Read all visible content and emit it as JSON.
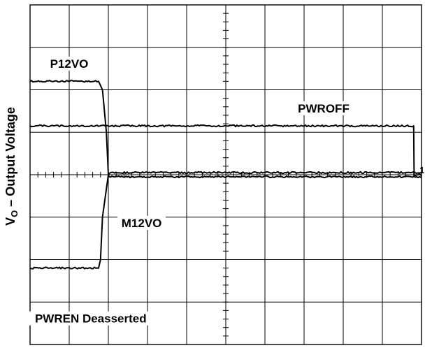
{
  "chart_data": {
    "type": "line",
    "title": "",
    "ylabel_main": "V",
    "ylabel_sub": "O",
    "ylabel_rest": " – Output Voltage",
    "xlabel": "",
    "grid": true,
    "divisions": {
      "x": 10,
      "y": 8
    },
    "xlim": [
      0,
      10
    ],
    "ylim": [
      -4,
      4
    ],
    "reference_marker": "1",
    "series": [
      {
        "name": "P12VO",
        "x": [
          0,
          1.75,
          1.85,
          1.95,
          2.0,
          2.02,
          10
        ],
        "y": [
          2.2,
          2.2,
          2.0,
          1.0,
          0.0,
          -0.05,
          -0.05
        ]
      },
      {
        "name": "PWROFF",
        "x": [
          0,
          9.8,
          9.81,
          10
        ],
        "y": [
          1.15,
          1.15,
          0.0,
          0.0
        ]
      },
      {
        "name": "M12VO",
        "x": [
          0,
          1.75,
          1.8,
          1.85,
          2.0,
          2.05,
          10
        ],
        "y": [
          -2.2,
          -2.2,
          -2.0,
          -1.0,
          0.0,
          0.05,
          0.05
        ]
      }
    ],
    "annotations": [
      {
        "text": "P12VO",
        "series": "P12VO"
      },
      {
        "text": "PWROFF",
        "series": "PWROFF"
      },
      {
        "text": "M12VO",
        "series": "M12VO"
      },
      {
        "text": "PWREN Deasserted",
        "series": "M12VO"
      }
    ]
  }
}
